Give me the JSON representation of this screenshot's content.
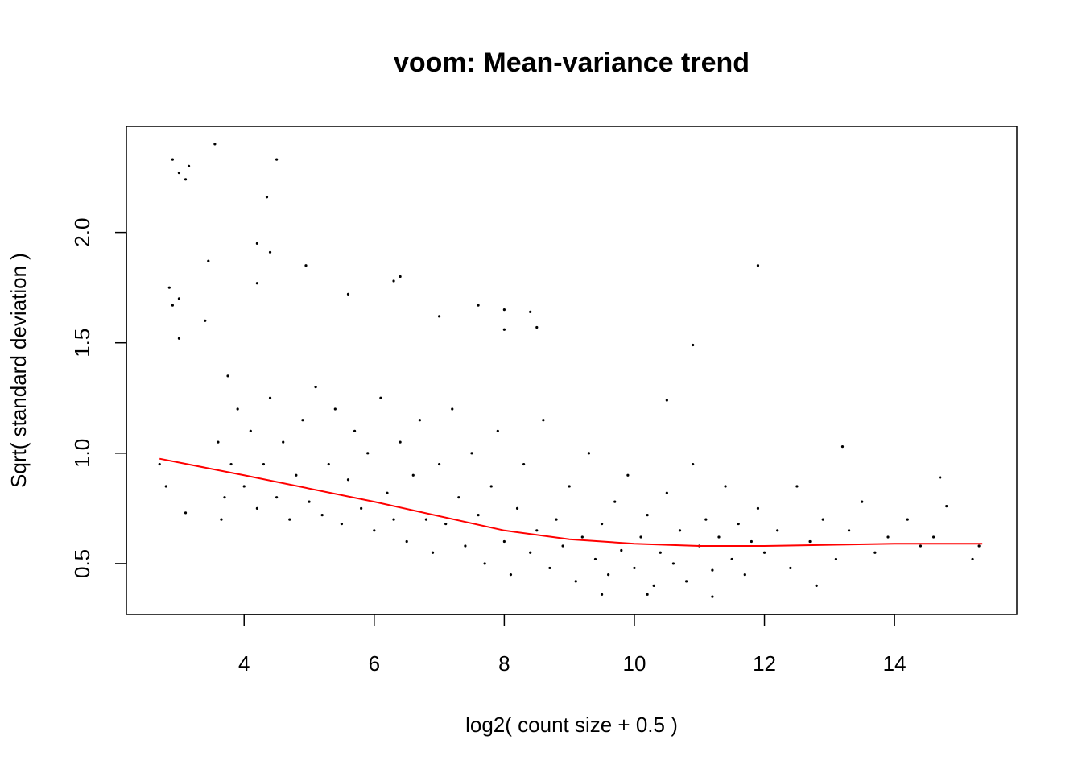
{
  "chart_data": {
    "type": "scatter",
    "title": "voom: Mean-variance trend",
    "x_label": "log2( count size + 0.5 )",
    "y_label": "Sqrt( standard deviation )",
    "xlim": [
      2.19,
      15.88
    ],
    "ylim": [
      0.27,
      2.48
    ],
    "xticks": [
      4,
      6,
      8,
      10,
      12,
      14
    ],
    "yticks": [
      0.5,
      {
        "value": 1,
        "label": "1.0"
      },
      1.5,
      {
        "value": 2,
        "label": "2.0"
      }
    ],
    "grid": false,
    "series": [
      {
        "type": "scatter",
        "color": "#000000",
        "x": [
          2.9,
          3.0,
          3.1,
          3.15,
          3.55,
          4.35,
          4.5,
          4.2,
          4.4,
          4.2,
          3.45,
          2.85,
          2.9,
          3.0,
          3.0,
          3.4,
          4.95,
          6.3,
          6.4,
          5.6,
          7.0,
          7.6,
          8.0,
          8.4,
          8.0,
          8.5,
          11.9,
          10.9,
          10.5,
          13.2,
          14.7,
          15.3,
          15.2,
          14.8,
          2.8,
          3.1,
          2.7,
          12.8,
          10.2,
          11.2,
          9.5,
          3.6,
          3.7,
          3.8,
          3.9,
          3.65,
          3.75,
          4.0,
          4.1,
          4.2,
          4.3,
          4.4,
          4.5,
          4.6,
          4.7,
          4.8,
          4.9,
          5.0,
          5.1,
          5.2,
          5.3,
          5.4,
          5.5,
          5.6,
          5.7,
          5.8,
          5.9,
          6.0,
          6.1,
          6.2,
          6.3,
          6.4,
          6.5,
          6.6,
          6.7,
          6.8,
          6.9,
          7.0,
          7.1,
          7.2,
          7.3,
          7.4,
          7.5,
          7.6,
          7.7,
          7.8,
          7.9,
          8.0,
          8.1,
          8.2,
          8.3,
          8.4,
          8.5,
          8.6,
          8.7,
          8.8,
          8.9,
          9.0,
          9.1,
          9.2,
          9.3,
          9.4,
          9.5,
          9.6,
          9.7,
          9.8,
          9.9,
          10.0,
          10.1,
          10.2,
          10.3,
          10.4,
          10.5,
          10.6,
          10.7,
          10.8,
          10.9,
          11.0,
          11.1,
          11.2,
          11.3,
          11.4,
          11.5,
          11.6,
          11.7,
          11.8,
          11.9,
          12.0,
          12.2,
          12.4,
          12.5,
          12.7,
          12.9,
          13.1,
          13.3,
          13.5,
          13.7,
          13.9,
          14.2,
          14.4,
          14.6
        ],
        "values": [
          2.33,
          2.27,
          2.24,
          2.3,
          2.4,
          2.16,
          2.33,
          1.95,
          1.91,
          1.77,
          1.87,
          1.75,
          1.67,
          1.7,
          1.52,
          1.6,
          1.85,
          1.78,
          1.8,
          1.72,
          1.62,
          1.67,
          1.65,
          1.64,
          1.56,
          1.57,
          1.85,
          1.49,
          1.24,
          1.03,
          0.89,
          0.58,
          0.52,
          0.76,
          0.85,
          0.73,
          0.95,
          0.4,
          0.36,
          0.35,
          0.36,
          1.05,
          0.8,
          0.95,
          1.2,
          0.7,
          1.35,
          0.85,
          1.1,
          0.75,
          0.95,
          1.25,
          0.8,
          1.05,
          0.7,
          0.9,
          1.15,
          0.78,
          1.3,
          0.72,
          0.95,
          1.2,
          0.68,
          0.88,
          1.1,
          0.75,
          1.0,
          0.65,
          1.25,
          0.82,
          0.7,
          1.05,
          0.6,
          0.9,
          1.15,
          0.7,
          0.55,
          0.95,
          0.68,
          1.2,
          0.8,
          0.58,
          1.0,
          0.72,
          0.5,
          0.85,
          1.1,
          0.6,
          0.45,
          0.75,
          0.95,
          0.55,
          0.65,
          1.15,
          0.48,
          0.7,
          0.58,
          0.85,
          0.42,
          0.62,
          1.0,
          0.52,
          0.68,
          0.45,
          0.78,
          0.56,
          0.9,
          0.48,
          0.62,
          0.72,
          0.4,
          0.55,
          0.82,
          0.5,
          0.65,
          0.42,
          0.95,
          0.58,
          0.7,
          0.47,
          0.62,
          0.85,
          0.52,
          0.68,
          0.45,
          0.6,
          0.75,
          0.55,
          0.65,
          0.48,
          0.85,
          0.6,
          0.7,
          0.52,
          0.65,
          0.78,
          0.55,
          0.62,
          0.7,
          0.58,
          0.62
        ]
      },
      {
        "type": "line",
        "color": "#ff0000",
        "x": [
          2.7,
          4,
          6,
          8,
          9,
          10,
          11,
          12,
          13,
          14,
          15.35
        ],
        "values": [
          0.975,
          0.9,
          0.78,
          0.65,
          0.61,
          0.59,
          0.58,
          0.58,
          0.585,
          0.59,
          0.59
        ]
      }
    ]
  }
}
